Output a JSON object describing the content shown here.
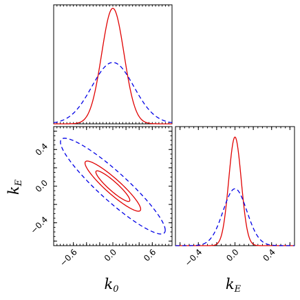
{
  "chart_data": {
    "type": "corner",
    "colors": {
      "red": "#e00000",
      "blue": "#0000e6"
    },
    "parameters": [
      {
        "key": "k0",
        "label_main": "k",
        "label_sub": "0"
      },
      {
        "key": "kE",
        "label_main": "k",
        "label_sub": "E"
      }
    ],
    "series": [
      {
        "style": "solid",
        "color": "#e00000",
        "mean": [
          0.0,
          0.0
        ],
        "sigma": [
          0.17,
          0.11
        ],
        "correlation": -0.92,
        "contour_levels": [
          "1-sigma",
          "2-sigma"
        ]
      },
      {
        "style": "dashed",
        "color": "#0000e6",
        "mean": [
          0.0,
          0.0
        ],
        "sigma": [
          0.32,
          0.21
        ],
        "correlation": -0.92,
        "contour_levels": [
          "2-sigma"
        ]
      }
    ],
    "panels": [
      {
        "id": "hist-k0",
        "type": "line",
        "xlim": [
          -0.9,
          0.9
        ],
        "ylim": [
          0,
          1.03
        ],
        "xticks": [],
        "yticks": []
      },
      {
        "id": "contour-k0-kE",
        "type": "contour",
        "xlim": [
          -0.9,
          0.9
        ],
        "ylim": [
          -0.65,
          0.65
        ],
        "xticks": [
          -0.6,
          -0.4,
          -0.2,
          0.0,
          0.2,
          0.4,
          0.6
        ],
        "xtick_labels": [
          "−0.6",
          "0.0",
          "0.6"
        ],
        "xtick_label_values": [
          -0.6,
          0.0,
          0.6
        ],
        "yticks": [
          -0.6,
          -0.4,
          -0.2,
          0.0,
          0.2,
          0.4,
          0.6
        ],
        "ytick_labels": [
          "−0.4",
          "0.0",
          "0.4"
        ],
        "ytick_label_values": [
          -0.4,
          0.0,
          0.4
        ],
        "xlabel": "k0",
        "ylabel": "kE"
      },
      {
        "id": "hist-kE",
        "type": "line",
        "xlim": [
          -0.65,
          0.65
        ],
        "ylim": [
          0,
          1.03
        ],
        "xticks": [
          -0.6,
          -0.4,
          -0.2,
          0.0,
          0.2,
          0.4,
          0.6
        ],
        "xtick_labels": [
          "−0.4",
          "0.0",
          "0.4"
        ],
        "xtick_label_values": [
          -0.4,
          0.0,
          0.4
        ],
        "xlabel": "kE"
      }
    ]
  }
}
